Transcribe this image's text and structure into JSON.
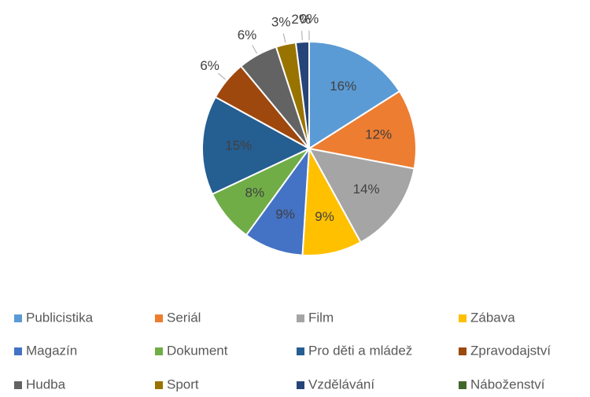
{
  "chart_data": {
    "type": "pie",
    "categories": [
      "Publicistika",
      "Seriál",
      "Film",
      "Zábava",
      "Magazín",
      "Dokument",
      "Pro děti a mládež",
      "Zpravodajství",
      "Hudba",
      "Sport",
      "Vzdělávání",
      "Náboženství"
    ],
    "values": [
      16,
      12,
      14,
      9,
      9,
      8,
      15,
      6,
      6,
      3,
      2,
      0
    ],
    "value_labels": [
      "16%",
      "12%",
      "14%",
      "9%",
      "9%",
      "8%",
      "15%",
      "6%",
      "6%",
      "3%",
      "2%",
      "0%"
    ],
    "colors": [
      "#5b9bd5",
      "#ed7d31",
      "#a5a5a5",
      "#ffc000",
      "#4472c4",
      "#70ad47",
      "#255e91",
      "#9e480e",
      "#636363",
      "#997300",
      "#264478",
      "#43682b"
    ],
    "legend": "bottom"
  }
}
